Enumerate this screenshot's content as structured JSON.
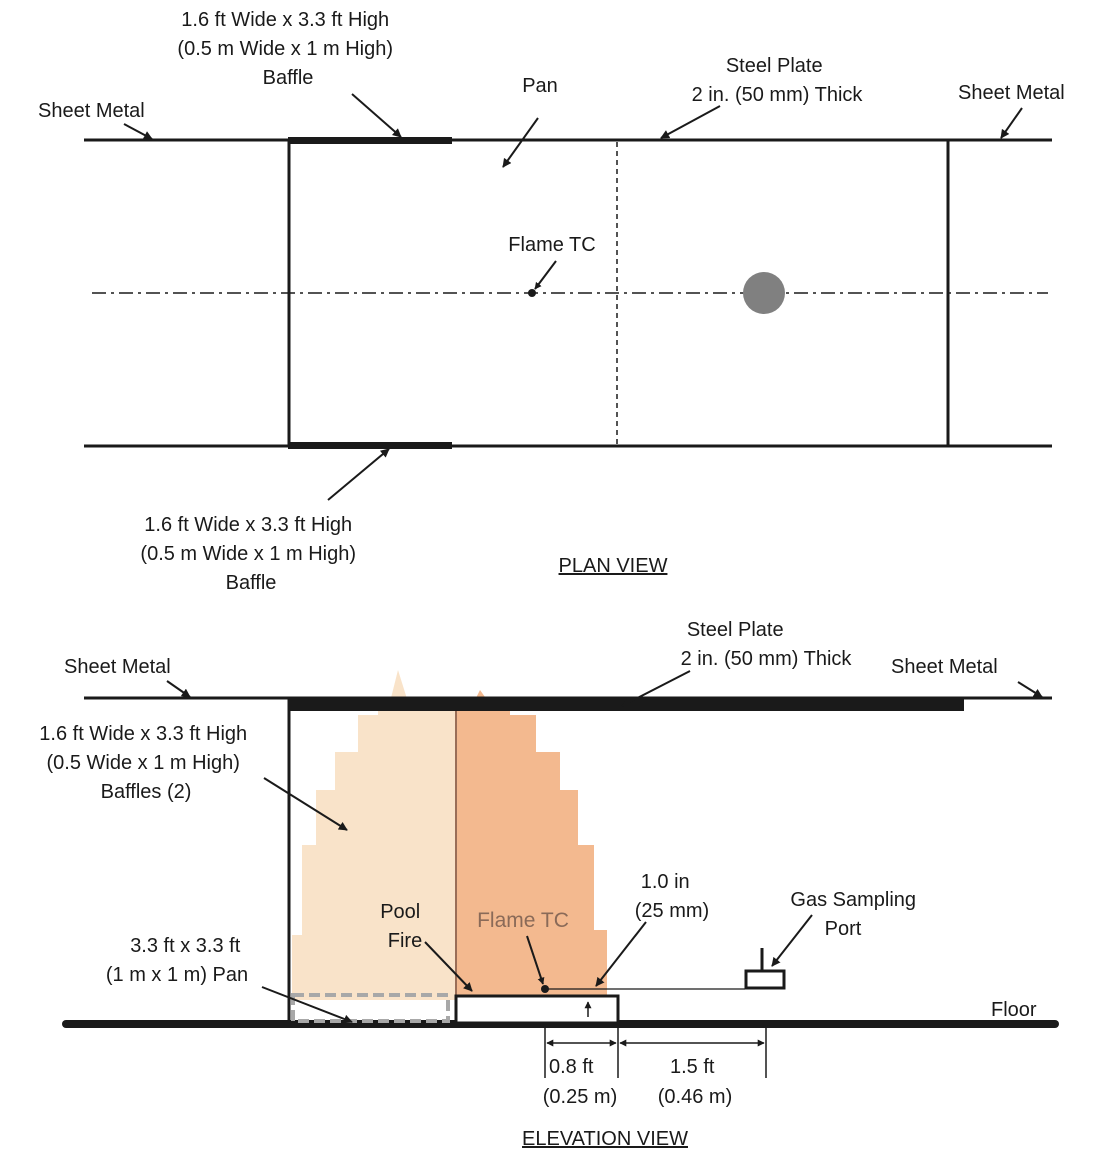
{
  "plan_view": {
    "title": "PLAN VIEW",
    "baffle_top": [
      "1.6 ft Wide x 3.3 ft High",
      "(0.5 m Wide x 1 m High)",
      "Baffle"
    ],
    "baffle_bottom": [
      "1.6 ft Wide x 3.3 ft High",
      "(0.5 m Wide x 1 m High)",
      "Baffle"
    ],
    "pan": "Pan",
    "steel_plate": [
      "Steel Plate",
      "2 in. (50 mm) Thick"
    ],
    "sheet_metal_left": "Sheet Metal",
    "sheet_metal_right": "Sheet Metal",
    "flame_tc": "Flame TC"
  },
  "elevation_view": {
    "title": "ELEVATION VIEW",
    "steel_plate": [
      "Steel Plate",
      "2 in. (50 mm) Thick"
    ],
    "sheet_metal_left": "Sheet Metal",
    "sheet_metal_right": "Sheet Metal",
    "baffles": [
      "1.6 ft Wide x 3.3 ft High",
      "(0.5 Wide x 1 m High)",
      "Baffles (2)"
    ],
    "pan": [
      "3.3 ft x 3.3 ft",
      "(1 m x 1 m) Pan"
    ],
    "pool_fire": [
      "Pool",
      "Fire"
    ],
    "flame_tc": "Flame TC",
    "tc_height": [
      "1.0 in",
      "(25 mm)"
    ],
    "gas_sampling_port": [
      "Gas Sampling",
      "Port"
    ],
    "floor": "Floor",
    "dim_left": [
      "0.8 ft",
      "(0.25 m)"
    ],
    "dim_right": [
      "1.5 ft",
      "(0.46 m)"
    ]
  },
  "colors": {
    "line": "#1a1a1a",
    "flame_light": "#f9e3c9",
    "flame_dark": "#f3b98f",
    "marker_gray": "#808080"
  }
}
